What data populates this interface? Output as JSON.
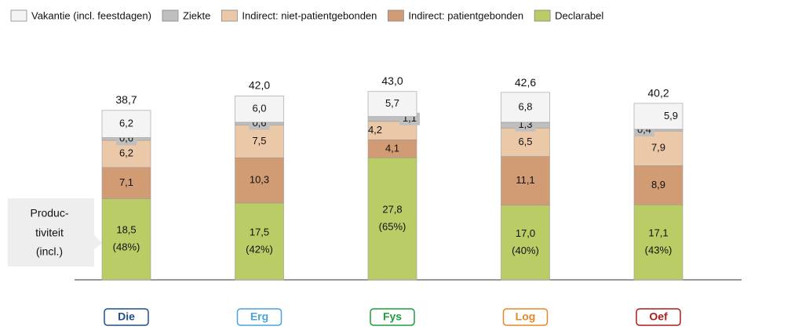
{
  "chart_data": {
    "type": "stacked_bar",
    "categories": [
      "Die",
      "Erg",
      "Fys",
      "Log",
      "Oef"
    ],
    "category_colors": [
      "#1f4e8c",
      "#4aa3df",
      "#1e9e3e",
      "#e8872a",
      "#b01c1c"
    ],
    "series": [
      {
        "name": "Declarabel",
        "color": "#b9cc66",
        "values": [
          18.5,
          17.5,
          27.8,
          17.0,
          17.1
        ],
        "value_labels": [
          "18,5",
          "17,5",
          "27,8",
          "17,0",
          "17,1"
        ]
      },
      {
        "name": "Indirect: patientgebonden",
        "color": "#d19c74",
        "values": [
          7.1,
          10.3,
          4.1,
          11.1,
          8.9
        ],
        "value_labels": [
          "7,1",
          "10,3",
          "4,1",
          "11,1",
          "8,9"
        ]
      },
      {
        "name": "Indirect: niet-patientgebonden",
        "color": "#ebc9a8",
        "values": [
          6.2,
          7.5,
          4.2,
          6.5,
          7.9
        ],
        "value_labels": [
          "6,2",
          "7,5",
          "4,2",
          "6,5",
          "7,9"
        ]
      },
      {
        "name": "Ziekte",
        "color": "#bfbfbf",
        "values": [
          0.6,
          0.6,
          1.1,
          1.3,
          0.4
        ],
        "value_labels": [
          "0,6",
          "0,6",
          "1,1",
          "1,3",
          "0,4"
        ]
      },
      {
        "name": "Vakantie (incl. feestdagen)",
        "color": "#f4f4f4",
        "values": [
          6.2,
          6.0,
          5.7,
          6.8,
          5.9
        ],
        "value_labels": [
          "6,2",
          "6,0",
          "5,7",
          "6,8",
          "5,9"
        ]
      }
    ],
    "legend_order": [
      4,
      3,
      2,
      1,
      0
    ],
    "totals": {
      "values": [
        38.7,
        42.0,
        43.0,
        42.6,
        40.2
      ],
      "value_labels": [
        "38,7",
        "42,0",
        "43,0",
        "42,6",
        "40,2"
      ]
    },
    "declarabel_share": {
      "values": [
        48,
        42,
        65,
        40,
        43
      ],
      "value_labels": [
        "(48%)",
        "(42%)",
        "(65%)",
        "(40%)",
        "(43%)"
      ]
    },
    "annotation": [
      "Produc-",
      "tiviteit",
      "(incl.)"
    ]
  }
}
